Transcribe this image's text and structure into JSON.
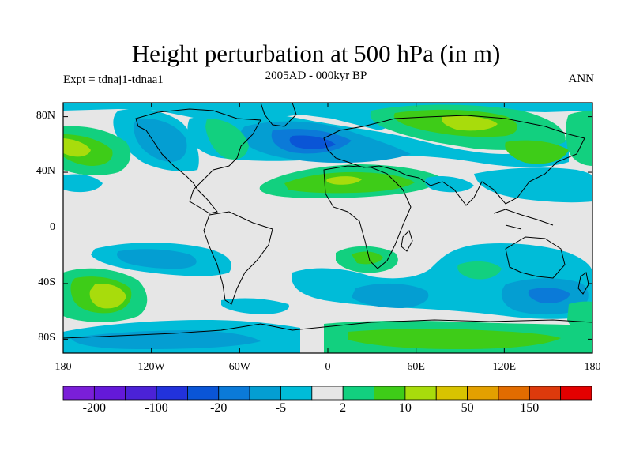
{
  "title": "Height perturbation at 500 hPa (in m)",
  "subtitle": "2005AD - 000kyr BP",
  "left_label": "Expt = tdnaj1-tdnaa1",
  "right_label": "ANN",
  "lat_ticks": [
    {
      "label": "80N",
      "value": 80
    },
    {
      "label": "40N",
      "value": 40
    },
    {
      "label": "0",
      "value": 0
    },
    {
      "label": "40S",
      "value": -40
    },
    {
      "label": "80S",
      "value": -80
    }
  ],
  "lon_ticks": [
    {
      "label": "180",
      "value": -180
    },
    {
      "label": "120W",
      "value": -120
    },
    {
      "label": "60W",
      "value": -60
    },
    {
      "label": "0",
      "value": 0
    },
    {
      "label": "60E",
      "value": 60
    },
    {
      "label": "120E",
      "value": 120
    },
    {
      "label": "180",
      "value": 180
    }
  ],
  "colorbar": {
    "colors": [
      "#7a1fd8",
      "#6419d9",
      "#4b22d6",
      "#2232db",
      "#0a55d6",
      "#0b7ad8",
      "#049ed2",
      "#00bcd8",
      "#e6e6e6",
      "#12d07f",
      "#3ecc18",
      "#a8dc0c",
      "#d8c300",
      "#e3a000",
      "#e26c00",
      "#dd3a0c",
      "#e30000"
    ],
    "labels": [
      {
        "text": "-200",
        "boundary": 1
      },
      {
        "text": "-100",
        "boundary": 3
      },
      {
        "text": "-20",
        "boundary": 5
      },
      {
        "text": "-5",
        "boundary": 7
      },
      {
        "text": "2",
        "boundary": 9
      },
      {
        "text": "10",
        "boundary": 11
      },
      {
        "text": "50",
        "boundary": 13
      },
      {
        "text": "150",
        "boundary": 15
      }
    ]
  },
  "field_colors": {
    "background": "#e6e6e6",
    "neg_weak": "#00bcd8",
    "neg_mid": "#049ed2",
    "neg_strong": "#0b7ad8",
    "neg_stronger": "#0a55d6",
    "pos_weak": "#12d07f",
    "pos_mid": "#3ecc18",
    "pos_strong": "#a8dc0c",
    "coast": "#000000"
  }
}
